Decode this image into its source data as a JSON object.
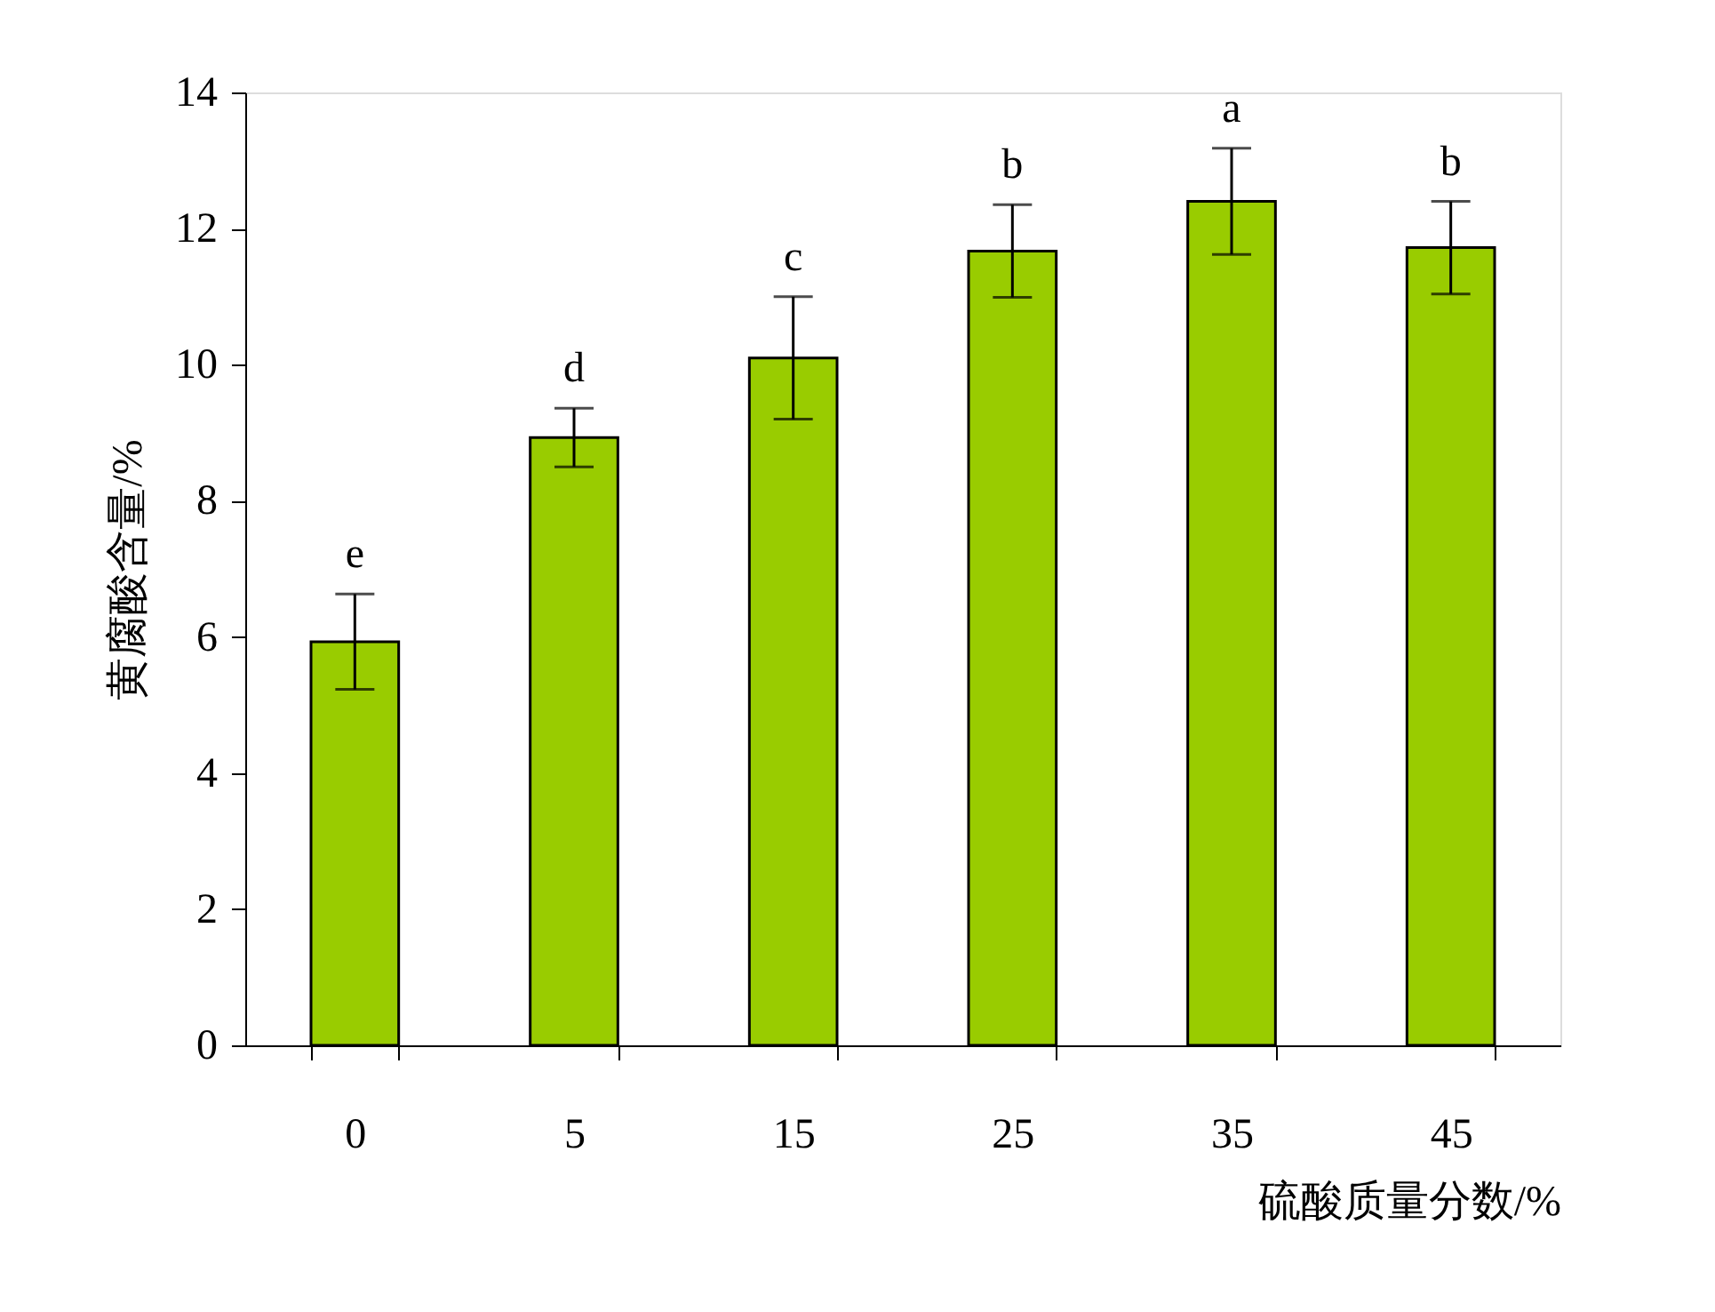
{
  "chart_data": {
    "type": "bar",
    "xlabel": "硫酸质量分数/%",
    "ylabel": "黄腐酸含量/%",
    "categories": [
      "0",
      "5",
      "15",
      "25",
      "35",
      "45"
    ],
    "values": [
      5.93,
      8.93,
      10.1,
      11.67,
      12.4,
      11.72
    ],
    "errors": [
      0.7,
      0.43,
      0.9,
      0.68,
      0.78,
      0.68
    ],
    "color": "#99cc00",
    "ylim": [
      0,
      14
    ],
    "yticks": [
      0,
      2,
      4,
      6,
      8,
      10,
      12,
      14
    ],
    "grid": false,
    "annotations": [
      {
        "text": "e",
        "x": "0",
        "y": 6.63
      },
      {
        "text": "d",
        "x": "5",
        "y": 9.36
      },
      {
        "text": "c",
        "x": "15",
        "y": 11.0
      },
      {
        "text": "b",
        "x": "25",
        "y": 12.35
      },
      {
        "text": "a",
        "x": "35",
        "y": 13.18
      },
      {
        "text": "b",
        "x": "45",
        "y": 12.4
      }
    ]
  }
}
